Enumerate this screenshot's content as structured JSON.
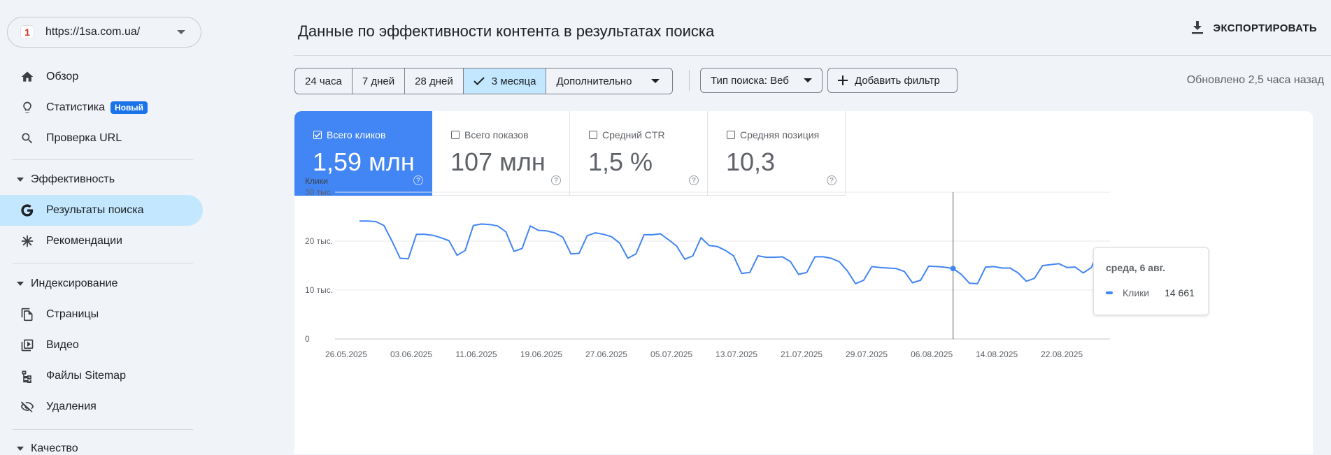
{
  "sidebar": {
    "property_url": "https://1sa.com.ua/",
    "property_logo": "1",
    "top_items": [
      {
        "label": "Обзор",
        "icon": "home-icon"
      },
      {
        "label": "Статистика",
        "icon": "lightbulb-icon",
        "badge": "Новый"
      },
      {
        "label": "Проверка URL",
        "icon": "search-icon"
      }
    ],
    "performance_section": "Эффективность",
    "performance_items": [
      {
        "label": "Результаты поиска",
        "icon": "google-g-icon"
      },
      {
        "label": "Рекомендации",
        "icon": "sparkle-icon"
      }
    ],
    "indexing_section": "Индексирование",
    "indexing_items": [
      {
        "label": "Страницы",
        "icon": "pages-icon"
      },
      {
        "label": "Видео",
        "icon": "video-icon"
      },
      {
        "label": "Файлы Sitemap",
        "icon": "sitemap-icon"
      },
      {
        "label": "Удаления",
        "icon": "eye-off-icon"
      }
    ],
    "quality_section": "Качество"
  },
  "header": {
    "title": "Данные по эффективности контента в результатах поиска",
    "export_label": "ЭКСПОРТИРОВАТЬ"
  },
  "filters": {
    "ranges": [
      "24 часа",
      "7 дней",
      "28 дней",
      "3 месяца",
      "Дополнительно"
    ],
    "selected_range": "3 месяца",
    "search_type": "Тип поиска: Веб",
    "add_filter": "Добавить фильтр",
    "updated": "Обновлено 2,5 часа назад"
  },
  "metrics": [
    {
      "label": "Всего кликов",
      "value": "1,59 млн",
      "checked": true
    },
    {
      "label": "Всего показов",
      "value": "107 млн",
      "checked": false
    },
    {
      "label": "Средний CTR",
      "value": "1,5 %",
      "checked": false
    },
    {
      "label": "Средняя позиция",
      "value": "10,3",
      "checked": false
    }
  ],
  "tooltip": {
    "date": "среда, 6 авг.",
    "series": "Клики",
    "value": "14 661"
  },
  "chart_data": {
    "type": "line",
    "ylabel": "Клики",
    "y_ticks": [
      "30 тыс.",
      "20 тыс.",
      "10 тыс.",
      "0"
    ],
    "ylim": [
      0,
      30000
    ],
    "x_tick_labels": [
      "26.05.2025",
      "03.06.2025",
      "11.06.2025",
      "19.06.2025",
      "27.06.2025",
      "05.07.2025",
      "13.07.2025",
      "21.07.2025",
      "29.07.2025",
      "06.08.2025",
      "14.08.2025",
      "22.08.2025"
    ],
    "grid": true,
    "color": "#4285f4",
    "series": [
      {
        "name": "Клики",
        "values": [
          24100,
          24100,
          24000,
          23200,
          20000,
          16500,
          16400,
          21400,
          21400,
          21200,
          20700,
          20100,
          17100,
          18100,
          23200,
          23500,
          23400,
          23100,
          21900,
          17900,
          18500,
          23100,
          22200,
          22100,
          21700,
          20800,
          17400,
          17500,
          21100,
          21700,
          21400,
          20900,
          19600,
          16500,
          17400,
          21300,
          21300,
          21500,
          20300,
          19000,
          16300,
          17000,
          20700,
          19100,
          18900,
          18100,
          17000,
          13400,
          13600,
          17000,
          16700,
          16700,
          16800,
          15800,
          13200,
          13600,
          16800,
          16800,
          16500,
          15800,
          13900,
          11300,
          12000,
          14800,
          14600,
          14500,
          14400,
          13800,
          11500,
          12000,
          14900,
          14800,
          14661,
          14400,
          13200,
          11400,
          11300,
          14700,
          14800,
          14500,
          14500,
          13500,
          11800,
          12400,
          15000,
          15200,
          15400,
          14600,
          14700,
          13500,
          14600,
          18400
        ]
      }
    ],
    "highlight_date": "06.08.2025"
  }
}
